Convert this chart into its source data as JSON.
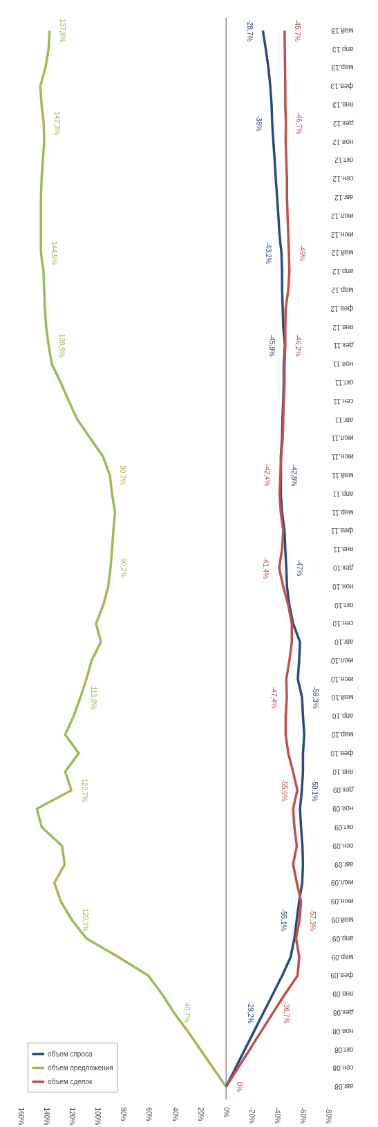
{
  "chart_data": {
    "type": "line",
    "categories": [
      "май.13",
      "апр.13",
      "мар.13",
      "фев.13",
      "янв.13",
      "дек.12",
      "ноя.12",
      "окт.12",
      "сен.12",
      "авг.12",
      "июл.12",
      "июн.12",
      "май.12",
      "апр.12",
      "мар.12",
      "фев.12",
      "янв.12",
      "дек.11",
      "ноя.11",
      "окт.11",
      "сен.11",
      "авг.11",
      "июл.11",
      "июн.11",
      "май.11",
      "апр.11",
      "мар.11",
      "фев.11",
      "янв.11",
      "дек.10",
      "ноя.10",
      "окт.10",
      "сен.10",
      "авг.10",
      "июл.10",
      "июн.10",
      "май.10",
      "апр.10",
      "мар.10",
      "фев.10",
      "янв.10",
      "дек.09",
      "ноя.09",
      "окт.09",
      "сен.09",
      "авг.09",
      "июл.09",
      "июн.09",
      "май.09",
      "апр.09",
      "мар.09",
      "фев.09",
      "янв.09",
      "дек.08",
      "ноя.08",
      "окт.08",
      "сен.08",
      "авг.08"
    ],
    "series": [
      {
        "name": "объем спроса",
        "color": "#2a4b7c",
        "values": [
          -28.7,
          -31,
          -33,
          -34.5,
          -35.5,
          -36,
          -36.9,
          -37.9,
          -38.8,
          -39.8,
          -40.8,
          -41.7,
          -43.2,
          -43.7,
          -43.7,
          -44.2,
          -44.6,
          -45.9,
          -45,
          -45,
          -44.6,
          -44,
          -43.7,
          -42.7,
          -42.8,
          -42.7,
          -43.7,
          -45.6,
          -46.2,
          -47,
          -47.5,
          -49.4,
          -52.3,
          -57.7,
          -57,
          -56,
          -59.3,
          -60,
          -61,
          -60,
          -60,
          -59.1,
          -57.7,
          -58.5,
          -59.6,
          -60,
          -59.4,
          -57,
          -55.1,
          -53.3,
          -50.4,
          -43.8,
          -36.5,
          -29.2,
          -21.9,
          -14.6,
          -7.3,
          0
        ],
        "value_labels": [
          "-28,7%",
          null,
          null,
          null,
          null,
          "-36%",
          null,
          null,
          null,
          null,
          null,
          null,
          "-43,2%",
          null,
          null,
          null,
          null,
          "-45,9%",
          null,
          null,
          null,
          null,
          null,
          null,
          "-42,8%",
          null,
          null,
          null,
          null,
          "-47%",
          null,
          null,
          null,
          null,
          null,
          null,
          "-59,3%",
          null,
          null,
          null,
          null,
          "-59,1%",
          null,
          null,
          null,
          null,
          null,
          null,
          "-55,1%",
          null,
          null,
          null,
          null,
          "-29,2%",
          null,
          null,
          null,
          null
        ]
      },
      {
        "name": "объем предложения",
        "color": "#9bbb59",
        "values": [
          137.8,
          138.5,
          141,
          145,
          144,
          142.3,
          142,
          143,
          144,
          144.5,
          144.5,
          144.5,
          144.5,
          142.5,
          142,
          141.4,
          140.4,
          138.5,
          136,
          129,
          122.7,
          116,
          106,
          96,
          90.7,
          89,
          86.7,
          88,
          89,
          90.2,
          92,
          95.8,
          101.5,
          97.7,
          105,
          109,
          113.8,
          119,
          125.6,
          115,
          125.6,
          120.7,
          147.7,
          143.8,
          128,
          126,
          134,
          129,
          120.3,
          109,
          84,
          60.7,
          50,
          40.7,
          30,
          20,
          10,
          0
        ],
        "value_labels": [
          "137,8%",
          null,
          null,
          null,
          null,
          "142,3%",
          null,
          null,
          null,
          null,
          null,
          null,
          "144,5%",
          null,
          null,
          null,
          null,
          "138,5%",
          null,
          null,
          null,
          null,
          null,
          null,
          "90,7%",
          null,
          null,
          null,
          null,
          "90,2%",
          null,
          null,
          null,
          null,
          null,
          null,
          "113,8%",
          null,
          null,
          null,
          null,
          "120,7%",
          null,
          null,
          null,
          null,
          null,
          null,
          "120,3%",
          null,
          null,
          null,
          null,
          "40,7%",
          null,
          null,
          null,
          null
        ]
      },
      {
        "name": "объем сделок",
        "color": "#c0504d",
        "values": [
          -45.7,
          -45.8,
          -46,
          -46.2,
          -46.2,
          -46.7,
          -46.5,
          -47,
          -47.5,
          -47.5,
          -48,
          -48.5,
          -49,
          -49.4,
          -48.5,
          -46.5,
          -46.2,
          -46.2,
          -45.6,
          -45.6,
          -45,
          -44.6,
          -44.2,
          -43,
          -42.4,
          -41.7,
          -42.7,
          -44.6,
          -43.7,
          -41.4,
          -44.6,
          -48.5,
          -51.3,
          -51.3,
          -49.4,
          -47,
          -47.4,
          -46.5,
          -46.5,
          -48.5,
          -52.3,
          -55.6,
          -52.3,
          -53.3,
          -55.2,
          -52.3,
          -55.2,
          -58.5,
          -57.3,
          -54.6,
          -57.1,
          -55.8,
          -46,
          -36.7,
          -27.5,
          -18.4,
          -9.2,
          0
        ],
        "value_labels": [
          "-45,7%",
          null,
          null,
          null,
          null,
          "-46,7%",
          null,
          null,
          null,
          null,
          null,
          null,
          "-49%",
          null,
          null,
          null,
          null,
          "-46,2%",
          null,
          null,
          null,
          null,
          null,
          null,
          "-42,4%",
          null,
          null,
          null,
          null,
          "-41,4%",
          null,
          null,
          null,
          null,
          null,
          null,
          "-47,4%",
          null,
          null,
          null,
          null,
          "-55,6%",
          null,
          null,
          null,
          null,
          null,
          null,
          "-57,3%",
          null,
          null,
          null,
          null,
          "-36,7%",
          null,
          null,
          null,
          "0%"
        ]
      }
    ],
    "xlim": [
      160,
      -80
    ],
    "xticks": [
      {
        "value": 160,
        "label": "160%"
      },
      {
        "value": 140,
        "label": "140%"
      },
      {
        "value": 120,
        "label": "120%"
      },
      {
        "value": 100,
        "label": "100%"
      },
      {
        "value": 80,
        "label": "80%"
      },
      {
        "value": 60,
        "label": "60%"
      },
      {
        "value": 40,
        "label": "40%"
      },
      {
        "value": 20,
        "label": "20%"
      },
      {
        "value": 0,
        "label": "0%"
      },
      {
        "value": -20,
        "label": "-20%"
      },
      {
        "value": -40,
        "label": "-40%"
      },
      {
        "value": -60,
        "label": "-60%"
      },
      {
        "value": -80,
        "label": "-80%"
      }
    ],
    "ref_lines": [
      {
        "axis": "x",
        "value": 0,
        "color": "#555555"
      }
    ],
    "orientation": "horizontal",
    "grid": false,
    "legend": "bottom left",
    "line_style": "solid",
    "marker": "none"
  }
}
